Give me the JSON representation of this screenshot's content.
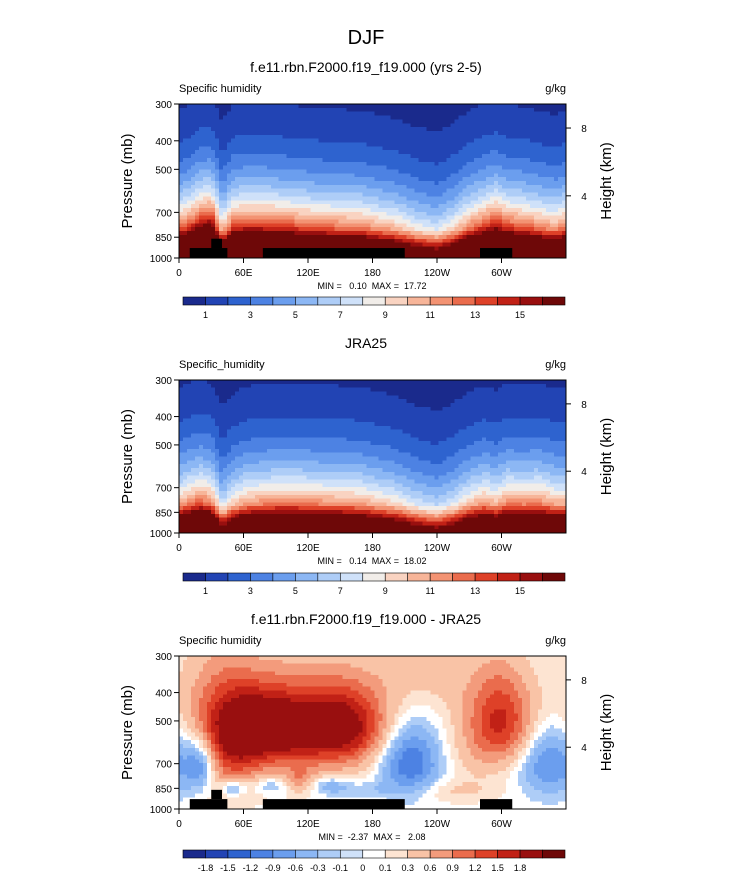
{
  "page_title": "DJF",
  "colorbar_abs": {
    "colors": [
      "#1a2a8c",
      "#2244b4",
      "#2e63cf",
      "#4d82e3",
      "#6b9eee",
      "#8cb7f4",
      "#aecdf7",
      "#cfe1f9",
      "#f1ede9",
      "#f9d3c1",
      "#f7b599",
      "#f39373",
      "#ea6c4d",
      "#de4128",
      "#c12116",
      "#990f0f",
      "#6e0808"
    ],
    "labels": [
      "1",
      "3",
      "5",
      "7",
      "9",
      "11",
      "13",
      "15"
    ]
  },
  "colorbar_diff": {
    "colors": [
      "#1a2a8c",
      "#2244b4",
      "#2e63cf",
      "#4d82e3",
      "#6b9eee",
      "#8cb7f4",
      "#aecdf7",
      "#cfe1f9",
      "#ffffff",
      "#fde4d2",
      "#f9c3a6",
      "#f39b7c",
      "#ea6c4d",
      "#de4128",
      "#c12116",
      "#990f0f",
      "#6e0808"
    ],
    "labels": [
      "-1.8",
      "-1.5",
      "-1.2",
      "-0.9",
      "-0.6",
      "-0.3",
      "-0.1",
      "0",
      "0.1",
      "0.3",
      "0.6",
      "0.9",
      "1.2",
      "1.5",
      "1.8"
    ]
  },
  "chart_data": [
    {
      "type": "heatmap",
      "title": "f.e11.rbn.F2000.f19_f19.000 (yrs 2-5)",
      "left_label": "Specific humidity",
      "right_label": "g/kg",
      "ylabel": "Pressure (mb)",
      "ylabel_right": "Height (km)",
      "x_ticks": [
        "0",
        "60E",
        "120E",
        "180",
        "120W",
        "60W"
      ],
      "x_tick_lon": [
        0,
        60,
        120,
        180,
        240,
        300
      ],
      "xlim": [
        0,
        360
      ],
      "y_ticks": [
        "300",
        "400",
        "500",
        "700",
        "850",
        "1000"
      ],
      "y_tick_p": [
        300,
        400,
        500,
        700,
        850,
        1000
      ],
      "ylim": [
        1000,
        300
      ],
      "y_scale": "log",
      "right_ticks": [
        "8",
        "4"
      ],
      "right_tick_p": [
        362,
        615
      ],
      "stats": "MIN =   0.10  MAX =  17.72",
      "min": 0.1,
      "max": 17.72,
      "profile_lon": [
        0,
        10,
        20,
        30,
        40,
        50,
        60,
        75,
        90,
        110,
        130,
        150,
        170,
        180,
        200,
        220,
        240,
        255,
        270,
        285,
        295,
        305,
        320,
        335,
        350,
        360
      ],
      "profile_p500": [
        3.6,
        4.0,
        4.8,
        5.0,
        2.8,
        4.0,
        4.2,
        4.2,
        4.1,
        3.9,
        3.7,
        3.6,
        3.5,
        3.3,
        3.0,
        2.5,
        2.2,
        2.7,
        3.5,
        4.1,
        4.5,
        4.0,
        3.8,
        3.5,
        3.2,
        3.6
      ],
      "scale_height": 2.6,
      "land": [
        {
          "lon": [
            10,
            45
          ],
          "p": [
            925,
            1000
          ]
        },
        {
          "lon": [
            30,
            40
          ],
          "p": [
            860,
            925
          ]
        },
        {
          "lon": [
            78,
            210
          ],
          "p": [
            925,
            1000
          ]
        },
        {
          "lon": [
            280,
            310
          ],
          "p": [
            925,
            1000
          ]
        }
      ]
    },
    {
      "type": "heatmap",
      "title": "JRA25",
      "left_label": "Specific_humidity",
      "right_label": "g/kg",
      "ylabel": "Pressure (mb)",
      "ylabel_right": "Height (km)",
      "x_ticks": [
        "0",
        "60E",
        "120E",
        "180",
        "120W",
        "60W"
      ],
      "x_tick_lon": [
        0,
        60,
        120,
        180,
        240,
        300
      ],
      "xlim": [
        0,
        360
      ],
      "y_ticks": [
        "300",
        "400",
        "500",
        "700",
        "850",
        "1000"
      ],
      "y_tick_p": [
        300,
        400,
        500,
        700,
        850,
        1000
      ],
      "ylim": [
        1000,
        300
      ],
      "y_scale": "log",
      "right_ticks": [
        "8",
        "4"
      ],
      "right_tick_p": [
        362,
        615
      ],
      "stats": "MIN =   0.14  MAX =  18.02",
      "min": 0.14,
      "max": 18.02,
      "profile_lon": [
        0,
        10,
        20,
        30,
        40,
        50,
        60,
        75,
        90,
        110,
        130,
        150,
        170,
        180,
        200,
        220,
        240,
        255,
        270,
        285,
        295,
        305,
        320,
        335,
        350,
        360
      ],
      "profile_p500": [
        3.2,
        3.6,
        3.9,
        3.6,
        2.2,
        2.9,
        3.3,
        3.5,
        3.6,
        3.6,
        3.5,
        3.4,
        3.3,
        3.1,
        2.8,
        2.3,
        2.0,
        2.4,
        3.0,
        3.4,
        3.1,
        3.6,
        3.5,
        3.6,
        3.2,
        3.2
      ],
      "scale_height": 2.5,
      "land": []
    },
    {
      "type": "heatmap",
      "title": "f.e11.rbn.F2000.f19_f19.000 - JRA25",
      "left_label": "Specific humidity",
      "right_label": "g/kg",
      "ylabel": "Pressure (mb)",
      "ylabel_right": "Height (km)",
      "x_ticks": [
        "0",
        "60E",
        "120E",
        "180",
        "120W",
        "60W"
      ],
      "x_tick_lon": [
        0,
        60,
        120,
        180,
        240,
        300
      ],
      "xlim": [
        0,
        360
      ],
      "y_ticks": [
        "300",
        "400",
        "500",
        "700",
        "850",
        "1000"
      ],
      "y_tick_p": [
        300,
        400,
        500,
        700,
        850,
        1000
      ],
      "ylim": [
        1000,
        300
      ],
      "y_scale": "log",
      "right_ticks": [
        "8",
        "4"
      ],
      "right_tick_p": [
        362,
        615
      ],
      "stats": "MIN =  -2.37  MAX =   2.08",
      "min": -2.37,
      "max": 2.08,
      "anomalies": [
        {
          "lon": 80,
          "p": 520,
          "a": 1.9,
          "rl": 30,
          "rp": 110
        },
        {
          "lon": 150,
          "p": 520,
          "a": 1.8,
          "rl": 30,
          "rp": 110
        },
        {
          "lon": 110,
          "p": 560,
          "a": 0.6,
          "rl": 60,
          "rp": 180
        },
        {
          "lon": 48,
          "p": 640,
          "a": 0.9,
          "rl": 20,
          "rp": 180
        },
        {
          "lon": 30,
          "p": 430,
          "a": 0.5,
          "rl": 25,
          "rp": 140
        },
        {
          "lon": 300,
          "p": 500,
          "a": 1.5,
          "rl": 22,
          "rp": 130
        },
        {
          "lon": 230,
          "p": 350,
          "a": 0.35,
          "rl": 40,
          "rp": 80
        },
        {
          "lon": 20,
          "p": 700,
          "a": -1.0,
          "rl": 10,
          "rp": 100
        },
        {
          "lon": 215,
          "p": 690,
          "a": -1.3,
          "rl": 20,
          "rp": 140
        },
        {
          "lon": 345,
          "p": 690,
          "a": -1.0,
          "rl": 20,
          "rp": 130
        },
        {
          "lon": 50,
          "p": 850,
          "a": -0.8,
          "rl": 8,
          "rp": 40
        },
        {
          "lon": 85,
          "p": 830,
          "a": -0.5,
          "rl": 15,
          "rp": 40
        },
        {
          "lon": 112,
          "p": 800,
          "a": 0.6,
          "rl": 10,
          "rp": 60
        },
        {
          "lon": 140,
          "p": 830,
          "a": -0.5,
          "rl": 12,
          "rp": 40
        },
        {
          "lon": 175,
          "p": 860,
          "a": -0.35,
          "rl": 30,
          "rp": 40
        },
        {
          "lon": 270,
          "p": 630,
          "a": 0.25,
          "rl": 25,
          "rp": 150
        },
        {
          "lon": 240,
          "p": 870,
          "a": 0.35,
          "rl": 40,
          "rp": 60
        }
      ],
      "land": [
        {
          "lon": [
            10,
            45
          ],
          "p": [
            925,
            1000
          ]
        },
        {
          "lon": [
            30,
            40
          ],
          "p": [
            860,
            925
          ]
        },
        {
          "lon": [
            78,
            210
          ],
          "p": [
            925,
            1000
          ]
        },
        {
          "lon": [
            280,
            310
          ],
          "p": [
            925,
            1000
          ]
        }
      ]
    }
  ]
}
